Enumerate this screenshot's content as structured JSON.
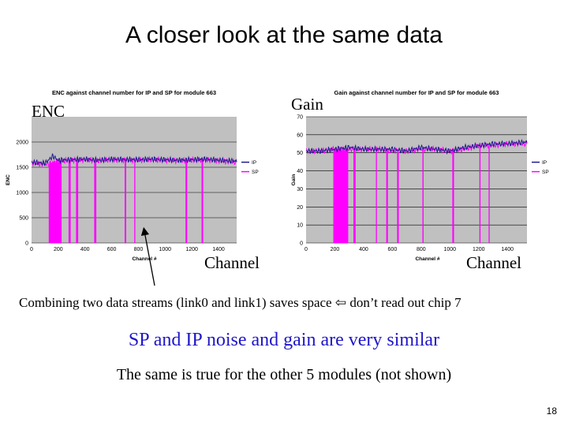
{
  "slide": {
    "title": "A closer look at the same data",
    "page_number": "18",
    "overlay_labels": {
      "enc": "ENC",
      "gain": "Gain",
      "channel_left": "Channel",
      "channel_right": "Channel"
    },
    "notes": {
      "combine": "Combining two data streams (link0 and link1) saves space ⇦ don’t read out chip 7",
      "similar": "SP and IP noise and gain are very similar",
      "others": "The same is true for the other 5 modules (not shown)"
    }
  },
  "colors": {
    "plot_bg": "#c0c0c0",
    "ip": "#1c1c8c",
    "sp": "#ff00ff",
    "note_blue": "#1f16c8"
  },
  "chart_data": [
    {
      "type": "line",
      "title": "ENC against channel number for IP and SP for module 663",
      "xlabel": "Channel #",
      "ylabel": "ENC",
      "xlim": [
        0,
        1536
      ],
      "ylim": [
        0,
        2500
      ],
      "xticks": [
        0,
        200,
        400,
        600,
        800,
        1000,
        1200,
        1400
      ],
      "yticks": [
        0,
        500,
        1000,
        1500,
        2000
      ],
      "grid": true,
      "legend": "right",
      "series": [
        {
          "name": "IP",
          "x": [
            0,
            100,
            160,
            200,
            300,
            400,
            500,
            600,
            700,
            800,
            900,
            1000,
            1100,
            1200,
            1300,
            1400,
            1536
          ],
          "values": [
            1600,
            1580,
            1720,
            1640,
            1650,
            1660,
            1640,
            1660,
            1650,
            1650,
            1660,
            1650,
            1640,
            1650,
            1660,
            1640,
            1620
          ]
        },
        {
          "name": "SP",
          "x": [
            0,
            100,
            160,
            200,
            300,
            400,
            500,
            600,
            700,
            800,
            900,
            1000,
            1100,
            1200,
            1300,
            1400,
            1536
          ],
          "values": [
            1580,
            1560,
            1600,
            1620,
            1640,
            1650,
            1630,
            1650,
            1640,
            1640,
            1650,
            1640,
            1630,
            1640,
            1650,
            1630,
            1600
          ],
          "dropouts": [
            {
              "from": 130,
              "to": 220,
              "value": 0
            },
            {
              "from": 280,
              "to": 290,
              "value": 0
            },
            {
              "from": 335,
              "to": 345,
              "value": 0
            },
            {
              "from": 470,
              "to": 480,
              "value": 0
            },
            {
              "from": 700,
              "to": 705,
              "value": 0
            },
            {
              "from": 770,
              "to": 775,
              "value": 0
            },
            {
              "from": 1155,
              "to": 1160,
              "value": 0
            },
            {
              "from": 1275,
              "to": 1280,
              "value": 0
            }
          ]
        }
      ]
    },
    {
      "type": "line",
      "title": "Gain against channel number for IP and SP for module 663",
      "xlabel": "Channel #",
      "ylabel": "Gain",
      "xlim": [
        0,
        1536
      ],
      "ylim": [
        0,
        70
      ],
      "xticks": [
        0,
        200,
        400,
        600,
        800,
        1000,
        1200,
        1400
      ],
      "yticks": [
        0,
        10,
        20,
        30,
        40,
        50,
        60,
        70
      ],
      "grid": true,
      "legend": "right",
      "series": [
        {
          "name": "IP",
          "x": [
            0,
            100,
            200,
            300,
            400,
            500,
            600,
            700,
            800,
            900,
            1000,
            1100,
            1200,
            1300,
            1400,
            1536
          ],
          "values": [
            51,
            51,
            52,
            53,
            52,
            52,
            52,
            51,
            53,
            52,
            51,
            53,
            54,
            55,
            55,
            56
          ]
        },
        {
          "name": "SP",
          "x": [
            0,
            100,
            200,
            300,
            400,
            500,
            600,
            700,
            800,
            900,
            1000,
            1100,
            1200,
            1300,
            1400,
            1536
          ],
          "values": [
            51,
            51,
            52,
            52,
            52,
            52,
            51,
            51,
            52,
            52,
            51,
            52,
            54,
            54,
            55,
            55
          ],
          "dropouts": [
            {
              "from": 190,
              "to": 290,
              "value": 0
            },
            {
              "from": 330,
              "to": 340,
              "value": 0
            },
            {
              "from": 485,
              "to": 490,
              "value": 0
            },
            {
              "from": 560,
              "to": 565,
              "value": 0
            },
            {
              "from": 635,
              "to": 640,
              "value": 0
            },
            {
              "from": 810,
              "to": 815,
              "value": 0
            },
            {
              "from": 1020,
              "to": 1025,
              "value": 0
            },
            {
              "from": 1205,
              "to": 1210,
              "value": 0
            },
            {
              "from": 1270,
              "to": 1275,
              "value": 0
            }
          ]
        }
      ]
    }
  ]
}
